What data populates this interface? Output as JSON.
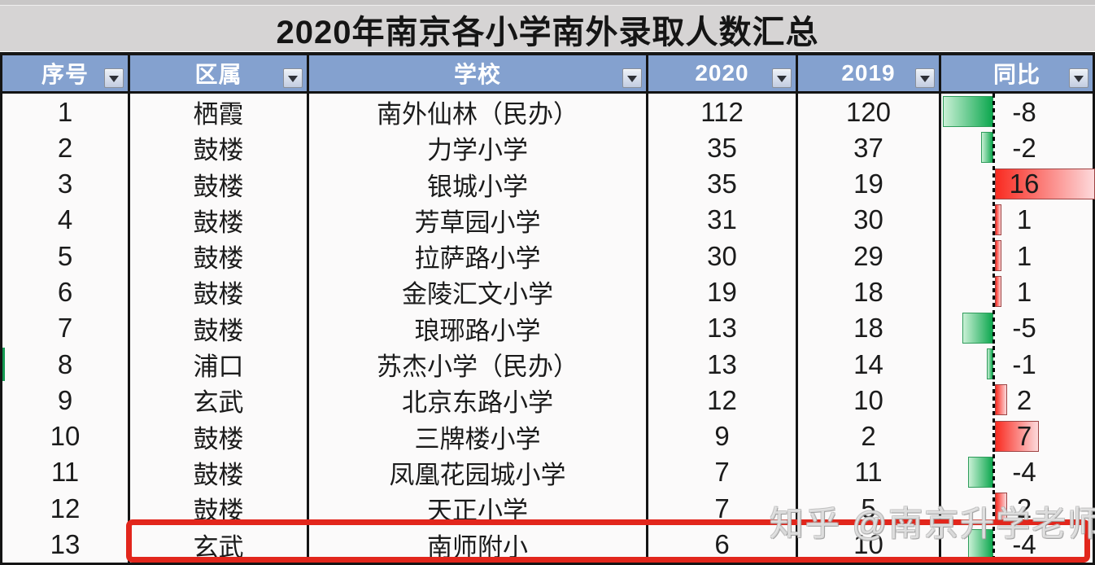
{
  "title": "2020年南京各小学南外录取人数汇总",
  "watermark": "知乎 @南京升学老师",
  "table": {
    "columns": [
      {
        "label": "序号"
      },
      {
        "label": "区属"
      },
      {
        "label": "学校"
      },
      {
        "label": "2020"
      },
      {
        "label": "2019"
      },
      {
        "label": "同比"
      }
    ],
    "rows": [
      {
        "index": "1",
        "district": "栖霞",
        "school": "南外仙林（民办）",
        "y2020": "112",
        "y2019": "120",
        "yoy": -8
      },
      {
        "index": "2",
        "district": "鼓楼",
        "school": "力学小学",
        "y2020": "35",
        "y2019": "37",
        "yoy": -2
      },
      {
        "index": "3",
        "district": "鼓楼",
        "school": "银城小学",
        "y2020": "35",
        "y2019": "19",
        "yoy": 16
      },
      {
        "index": "4",
        "district": "鼓楼",
        "school": "芳草园小学",
        "y2020": "31",
        "y2019": "30",
        "yoy": 1
      },
      {
        "index": "5",
        "district": "鼓楼",
        "school": "拉萨路小学",
        "y2020": "30",
        "y2019": "29",
        "yoy": 1
      },
      {
        "index": "6",
        "district": "鼓楼",
        "school": "金陵汇文小学",
        "y2020": "19",
        "y2019": "18",
        "yoy": 1
      },
      {
        "index": "7",
        "district": "鼓楼",
        "school": "琅琊路小学",
        "y2020": "13",
        "y2019": "18",
        "yoy": -5
      },
      {
        "index": "8",
        "district": "浦口",
        "school": "苏杰小学（民办）",
        "y2020": "13",
        "y2019": "14",
        "yoy": -1,
        "left_marker": true
      },
      {
        "index": "9",
        "district": "玄武",
        "school": "北京东路小学",
        "y2020": "12",
        "y2019": "10",
        "yoy": 2
      },
      {
        "index": "10",
        "district": "鼓楼",
        "school": "三牌楼小学",
        "y2020": "9",
        "y2019": "2",
        "yoy": 7
      },
      {
        "index": "11",
        "district": "鼓楼",
        "school": "凤凰花园城小学",
        "y2020": "7",
        "y2019": "11",
        "yoy": -4
      },
      {
        "index": "12",
        "district": "鼓楼",
        "school": "天正小学",
        "y2020": "7",
        "y2019": "5",
        "yoy": 2
      },
      {
        "index": "13",
        "district": "玄武",
        "school": "南师附小",
        "y2020": "6",
        "y2019": "10",
        "yoy": -4,
        "highlighted": true
      }
    ]
  },
  "colors": {
    "header_bg": "#84A1CF",
    "title_bg": "#D6D4D4",
    "cell_bg": "#FBFAFA",
    "border_black": "#141414",
    "bar_green_dark": "#0CA74E",
    "bar_green_light": "#C9F0D5",
    "bar_red_dark": "#F92B21",
    "bar_red_light": "#FDD9DB",
    "highlight_red": "#E2261C"
  },
  "chart_data": {
    "type": "table",
    "title": "2020年南京各小学南外录取人数汇总",
    "columns": [
      "序号",
      "区属",
      "学校",
      "2020",
      "2019",
      "同比"
    ],
    "rows": [
      [
        1,
        "栖霞",
        "南外仙林（民办）",
        112,
        120,
        -8
      ],
      [
        2,
        "鼓楼",
        "力学小学",
        35,
        37,
        -2
      ],
      [
        3,
        "鼓楼",
        "银城小学",
        35,
        19,
        16
      ],
      [
        4,
        "鼓楼",
        "芳草园小学",
        31,
        30,
        1
      ],
      [
        5,
        "鼓楼",
        "拉萨路小学",
        30,
        29,
        1
      ],
      [
        6,
        "鼓楼",
        "金陵汇文小学",
        19,
        18,
        1
      ],
      [
        7,
        "鼓楼",
        "琅琊路小学",
        13,
        18,
        -5
      ],
      [
        8,
        "浦口",
        "苏杰小学（民办）",
        13,
        14,
        -1
      ],
      [
        9,
        "玄武",
        "北京东路小学",
        12,
        10,
        2
      ],
      [
        10,
        "鼓楼",
        "三牌楼小学",
        9,
        2,
        7
      ],
      [
        11,
        "鼓楼",
        "凤凰花园城小学",
        7,
        11,
        -4
      ],
      [
        12,
        "鼓楼",
        "天正小学",
        7,
        5,
        2
      ],
      [
        13,
        "玄武",
        "南师附小",
        6,
        10,
        -4
      ]
    ],
    "yoy_databar": {
      "column": "同比",
      "negative_bar_color": "green",
      "positive_bar_color": "red",
      "axis_range": [
        -8,
        16
      ],
      "zero_axis_style": "dashed-vertical-line"
    },
    "annotations": [
      {
        "type": "highlight-box",
        "color": "#E2261C",
        "target_row": 13
      },
      {
        "type": "watermark",
        "text": "知乎 @南京升学老师"
      }
    ]
  }
}
